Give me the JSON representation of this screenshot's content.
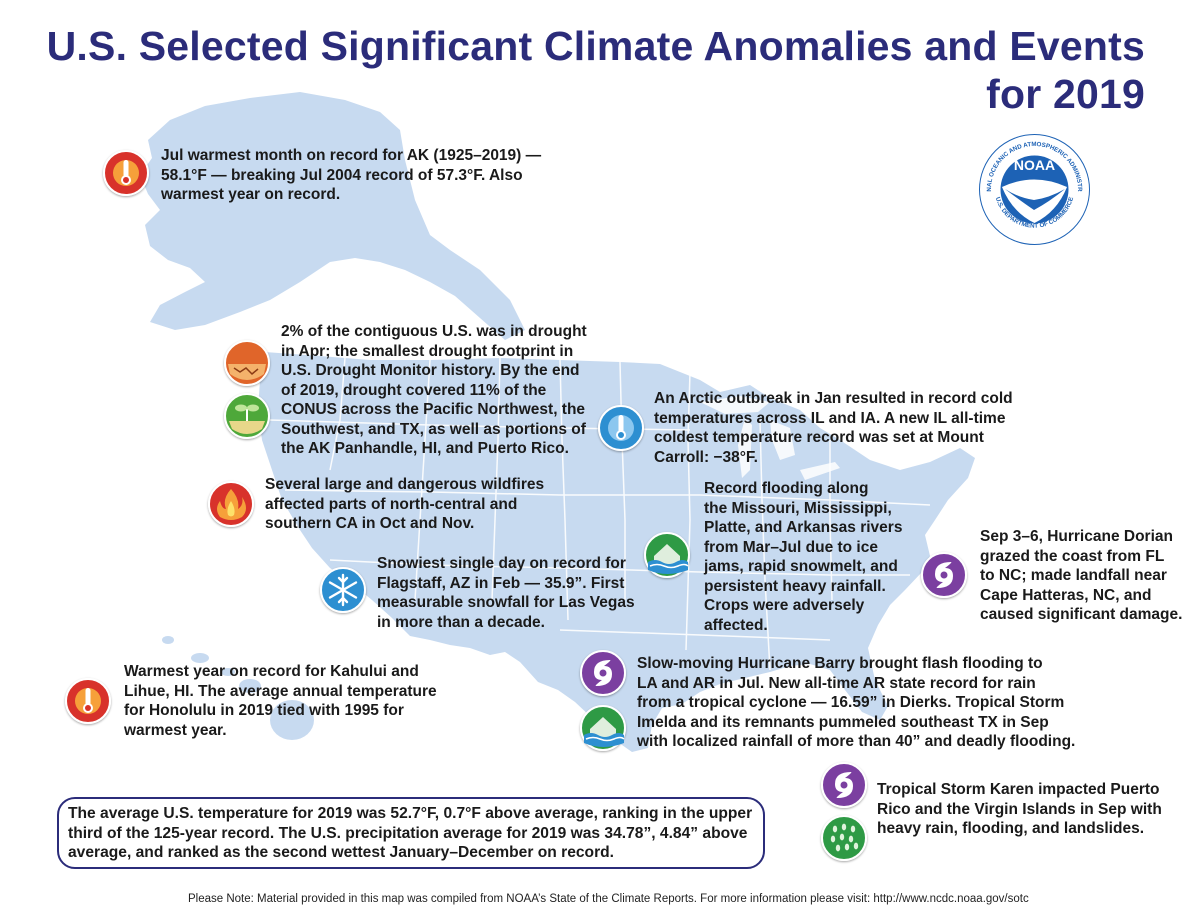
{
  "title": {
    "line1": "U.S. Selected Significant Climate Anomalies and Events",
    "line2": "for 2019"
  },
  "logo": {
    "text": "NOAA",
    "ring_text_top": "NATIONAL OCEANIC AND ATMOSPHERIC ADMINISTRATION",
    "ring_text_bottom": "U.S. DEPARTMENT OF COMMERCE"
  },
  "events": [
    {
      "id": "alaska",
      "icons": [
        "heat-thermometer-icon"
      ],
      "lines": [
        "Jul warmest month on record for AK (1925–2019) —",
        "58.1°F — breaking Jul 2004 record of 57.3°F. Also",
        "warmest year on record."
      ]
    },
    {
      "id": "drought",
      "icons": [
        "drought-cracked-earth-icon",
        "drought-improvement-sprout-icon"
      ],
      "lines": [
        "2% of the contiguous U.S. was in drought",
        "in Apr; the smallest drought footprint in",
        "U.S. Drought Monitor history. By the end",
        "of 2019, drought covered 11% of the",
        "CONUS across the Pacific Northwest, the",
        "Southwest, and TX, as well as portions of",
        "the AK Panhandle, HI, and Puerto Rico."
      ]
    },
    {
      "id": "wildfires",
      "icons": [
        "wildfire-icon"
      ],
      "lines": [
        "Several large and dangerous wildfires",
        "affected parts of north-central and",
        "southern CA in Oct and Nov."
      ]
    },
    {
      "id": "flagstaff",
      "icons": [
        "snowflake-icon"
      ],
      "lines": [
        "Snowiest single day on record for",
        "Flagstaff, AZ in Feb — 35.9”. First",
        "measurable snowfall for Las Vegas",
        "in more than a decade."
      ]
    },
    {
      "id": "hawaii",
      "icons": [
        "heat-thermometer-icon"
      ],
      "lines": [
        "Warmest year on record for Kahului and",
        "Lihue, HI. The average annual temperature",
        "for Honolulu in 2019 tied with 1995 for",
        "warmest year."
      ]
    },
    {
      "id": "arctic",
      "icons": [
        "cold-thermometer-icon"
      ],
      "lines": [
        "An Arctic outbreak in Jan resulted in record cold",
        "temperatures across IL and IA. A new IL all-time",
        "coldest temperature record was set at Mount",
        "Carroll: −38°F."
      ]
    },
    {
      "id": "flooding",
      "icons": [
        "flood-icon"
      ],
      "lines": [
        "Record flooding along",
        "the Missouri, Mississippi,",
        "Platte, and Arkansas rivers",
        "from Mar–Jul due to ice",
        "jams, rapid snowmelt, and",
        "persistent heavy rainfall.",
        "Crops were adversely",
        "affected."
      ]
    },
    {
      "id": "dorian",
      "icons": [
        "hurricane-icon"
      ],
      "lines": [
        "Sep 3–6, Hurricane Dorian",
        "grazed the coast from FL",
        "to NC; made landfall near",
        "Cape Hatteras, NC, and",
        "caused significant damage."
      ]
    },
    {
      "id": "barry",
      "icons": [
        "hurricane-icon",
        "flood-icon"
      ],
      "lines": [
        "Slow-moving Hurricane Barry brought flash flooding to",
        "LA and AR in Jul. New all-time AR state record for rain",
        "from a tropical cyclone — 16.59” in Dierks. Tropical Storm",
        "Imelda and its remnants pummeled southeast TX in Sep",
        "with localized rainfall of more than 40” and deadly flooding."
      ]
    },
    {
      "id": "karen",
      "icons": [
        "hurricane-icon",
        "heavy-rain-icon"
      ],
      "lines": [
        "Tropical Storm Karen impacted Puerto",
        "Rico and the Virgin Islands in Sep with",
        "heavy rain, flooding, and landslides."
      ]
    }
  ],
  "summary": {
    "lines": [
      "The average U.S. temperature for 2019 was 52.7°F, 0.7°F above average, ranking in the upper",
      "third of the 125-year record. The U.S. precipitation average for 2019 was 34.78”, 4.84” above",
      "average, and ranked as the second wettest January–December on record."
    ]
  },
  "footnote": "Please Note: Material provided in this map was compiled from NOAA’s State of the Climate Reports. For more information please visit: http://www.ncdc.noaa.gov/sotc",
  "colors": {
    "title": "#2b2c7a",
    "map_land": "#c7daf0",
    "state_borders": "#ffffff",
    "heat_icon": "#d8322b",
    "cold_icon": "#2d8fd1",
    "hurricane_icon": "#7b3fa0",
    "flood_icon": "#2e9a45",
    "drought_icon": "#e0652a",
    "noaa_blue": "#1d62b5"
  }
}
